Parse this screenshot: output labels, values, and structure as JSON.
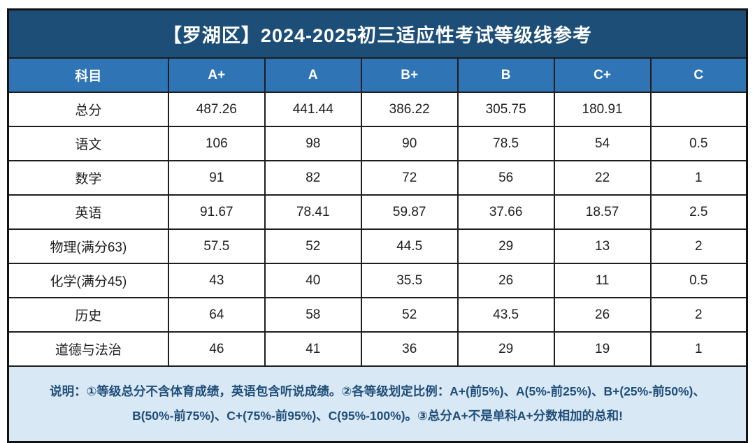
{
  "title": "【罗湖区】2024-2025初三适应性考试等级线参考",
  "table": {
    "columns": [
      "科目",
      "A+",
      "A",
      "B+",
      "B",
      "C+",
      "C"
    ],
    "rows": [
      {
        "subject": "总分",
        "values": [
          "487.26",
          "441.44",
          "386.22",
          "305.75",
          "180.91",
          ""
        ]
      },
      {
        "subject": "语文",
        "values": [
          "106",
          "98",
          "90",
          "78.5",
          "54",
          "0.5"
        ]
      },
      {
        "subject": "数学",
        "values": [
          "91",
          "82",
          "72",
          "56",
          "22",
          "1"
        ]
      },
      {
        "subject": "英语",
        "values": [
          "91.67",
          "78.41",
          "59.87",
          "37.66",
          "18.57",
          "2.5"
        ]
      },
      {
        "subject": "物理(满分63)",
        "values": [
          "57.5",
          "52",
          "44.5",
          "29",
          "13",
          "2"
        ]
      },
      {
        "subject": "化学(满分45)",
        "values": [
          "43",
          "40",
          "35.5",
          "26",
          "11",
          "0.5"
        ]
      },
      {
        "subject": "历史",
        "values": [
          "64",
          "58",
          "52",
          "43.5",
          "26",
          "2"
        ]
      },
      {
        "subject": "道德与法治",
        "values": [
          "46",
          "41",
          "36",
          "29",
          "19",
          "1"
        ]
      }
    ]
  },
  "note": "说明：①等级总分不含体育成绩，英语包含听说成绩。②各等级划定比例：A+(前5%)、A(5%-前25%)、B+(25%-前50%)、B(50%-前75%)、C+(75%-前95%)、C(95%-100%)。③总分A+不是单科A+分数相加的总和!",
  "colors": {
    "title_bg": "#1d4e77",
    "header_bg": "#2f74b4",
    "note_bg": "#d9e8f5",
    "note_text": "#1f4e79",
    "border": "#1e1e1e"
  }
}
